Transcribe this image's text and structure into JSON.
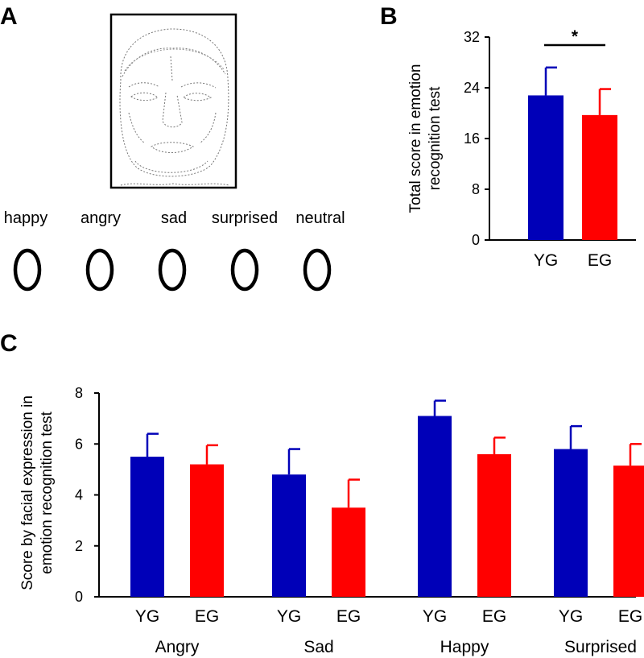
{
  "panels": {
    "a": "A",
    "b": "B",
    "c": "C"
  },
  "options": [
    "happy",
    "angry",
    "sad",
    "surprised",
    "neutral"
  ],
  "colors": {
    "YG": "#0000b8",
    "EG": "#ff0000",
    "axis": "#000000"
  },
  "chart_data": [
    {
      "id": "B",
      "type": "bar",
      "categories": [
        "YG",
        "EG"
      ],
      "values": [
        22.8,
        19.7
      ],
      "errors": [
        4.4,
        4.1
      ],
      "ylabel_lines": [
        "Total score in emotion",
        "recognition test"
      ],
      "ylim": [
        0,
        32
      ],
      "yticks": [
        0,
        8,
        16,
        24,
        32
      ],
      "significance": "*"
    },
    {
      "id": "C",
      "type": "bar",
      "groups": [
        "Angry",
        "Sad",
        "Happy",
        "Surprised"
      ],
      "series": [
        {
          "name": "YG",
          "values": [
            5.5,
            4.8,
            7.1,
            5.8
          ],
          "errors": [
            0.9,
            1.0,
            0.6,
            0.9
          ]
        },
        {
          "name": "EG",
          "values": [
            5.2,
            3.5,
            5.6,
            5.15
          ],
          "errors": [
            0.75,
            1.1,
            0.65,
            0.85
          ]
        }
      ],
      "ylabel_lines": [
        "Score by facial expression in",
        "emotion recognition test"
      ],
      "ylim": [
        0,
        8
      ],
      "yticks": [
        0,
        2,
        4,
        6,
        8
      ]
    }
  ]
}
